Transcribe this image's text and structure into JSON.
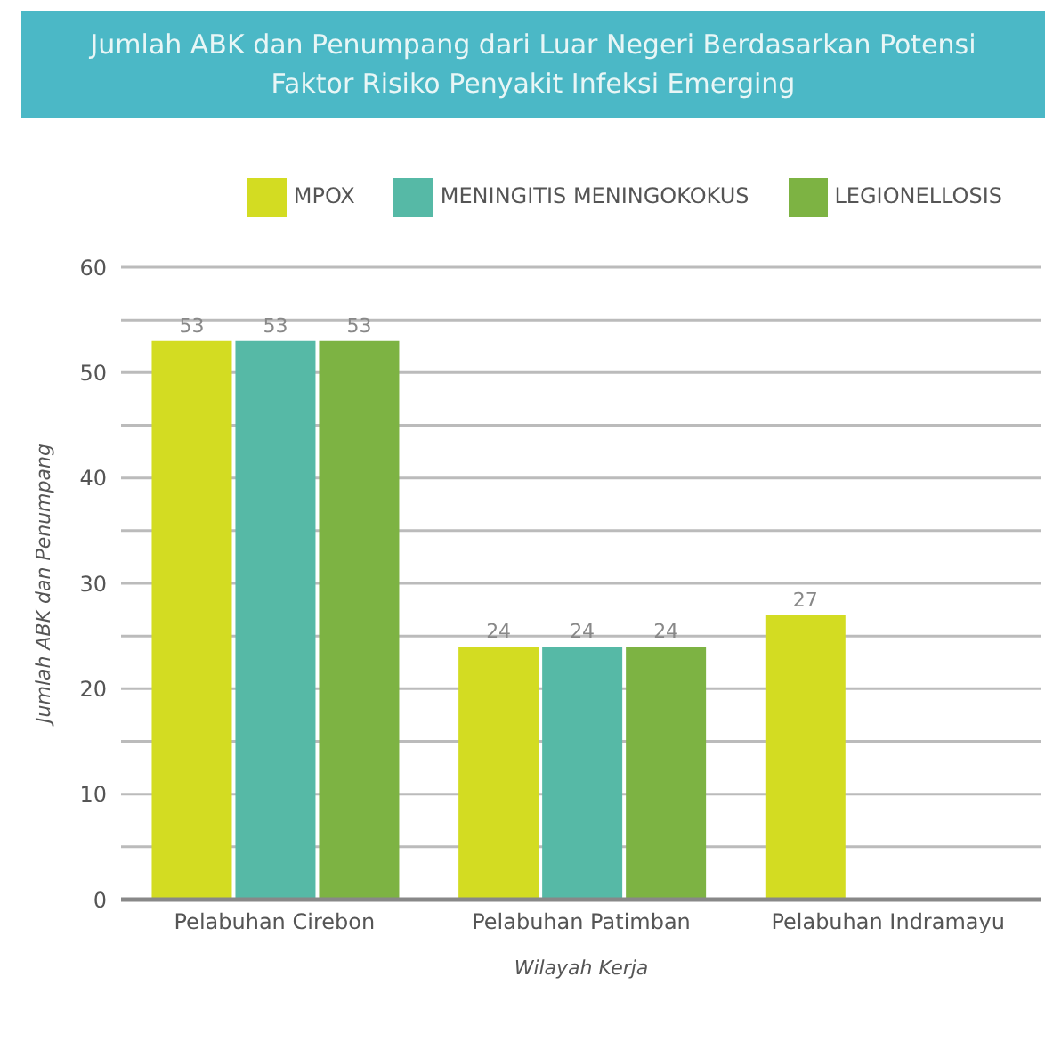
{
  "chart_data": {
    "type": "bar",
    "title": "Jumlah ABK dan Penumpang dari Luar Negeri Berdasarkan Potensi Faktor Risiko Penyakit Infeksi Emerging",
    "xlabel": "Wilayah Kerja",
    "ylabel": "Jumlah ABK dan Penumpang",
    "categories": [
      "Pelabuhan Cirebon",
      "Pelabuhan Patimban",
      "Pelabuhan Indramayu"
    ],
    "series": [
      {
        "name": "MPOX",
        "color": "#d3dc22",
        "values": [
          53,
          24,
          27
        ]
      },
      {
        "name": "MENINGITIS MENINGOKOKUS",
        "color": "#56b9a6",
        "values": [
          53,
          24,
          null
        ]
      },
      {
        "name": "LEGIONELLOSIS",
        "color": "#7db343",
        "values": [
          53,
          24,
          null
        ]
      }
    ],
    "ylim": [
      0,
      60
    ],
    "yticks": [
      0,
      {
        "value": 5,
        "label": null
      },
      10,
      {
        "value": 15,
        "label": null
      },
      20,
      {
        "value": 25,
        "label": null
      },
      30,
      {
        "value": 35,
        "label": null
      },
      40,
      {
        "value": 45,
        "label": null
      },
      50,
      {
        "value": 55,
        "label": null
      },
      60
    ],
    "grid": "y",
    "legend": "top",
    "data_labels": true
  }
}
